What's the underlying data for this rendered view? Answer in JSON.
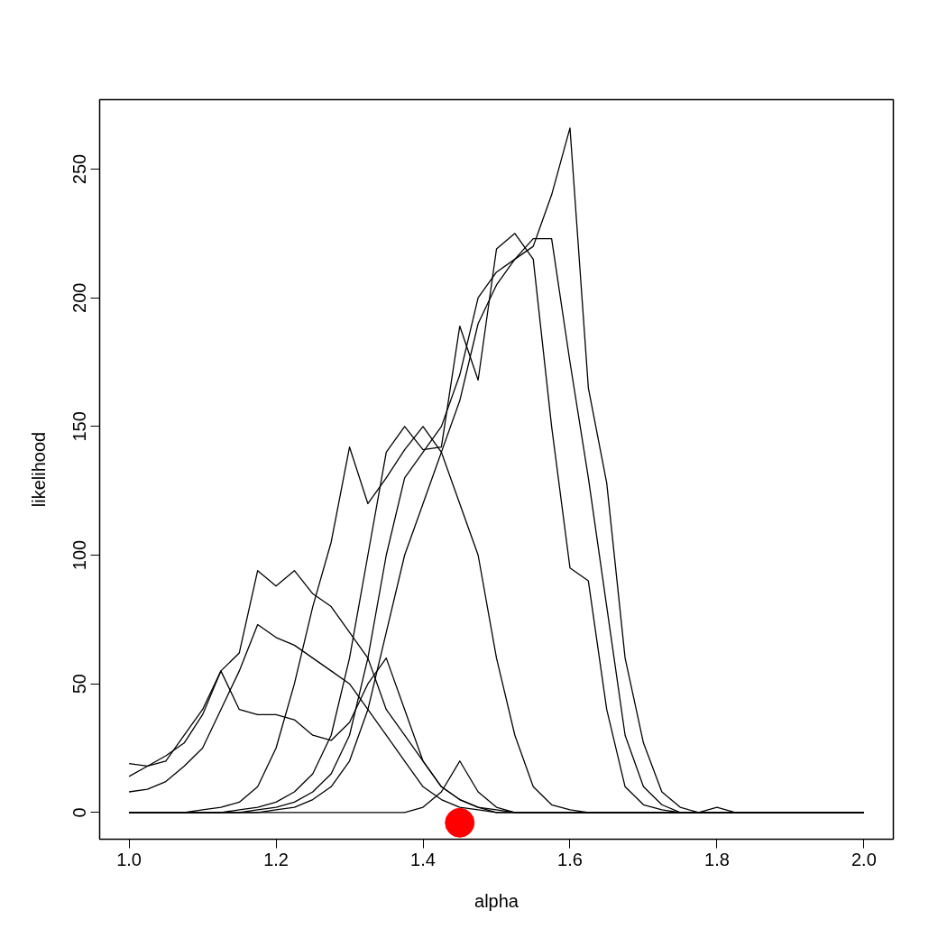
{
  "chart_data": {
    "type": "line",
    "xlabel": "alpha",
    "ylabel": "likelihood",
    "x": [
      1.0,
      1.025,
      1.05,
      1.075,
      1.1,
      1.125,
      1.15,
      1.175,
      1.2,
      1.225,
      1.25,
      1.275,
      1.3,
      1.325,
      1.35,
      1.375,
      1.4,
      1.425,
      1.45,
      1.475,
      1.5,
      1.525,
      1.55,
      1.575,
      1.6,
      1.625,
      1.65,
      1.675,
      1.7,
      1.725,
      1.75,
      1.775,
      1.8,
      1.825,
      1.85,
      1.875,
      1.9,
      1.925,
      1.95,
      1.975,
      2.0
    ],
    "series": [
      {
        "color": "#000000",
        "values": [
          0,
          0,
          0,
          0,
          0,
          0,
          0,
          1,
          2,
          4,
          8,
          15,
          30,
          60,
          100,
          130,
          140,
          150,
          170,
          200,
          210,
          215,
          220,
          240,
          266,
          165,
          128,
          60,
          27,
          8,
          2,
          0,
          0,
          0,
          0,
          0,
          0,
          0,
          0,
          0,
          0
        ]
      },
      {
        "color": "#000000",
        "values": [
          0,
          0,
          0,
          0,
          0,
          0,
          1,
          2,
          4,
          8,
          15,
          30,
          60,
          100,
          140,
          150,
          141,
          142,
          189,
          168,
          219,
          225,
          215,
          150,
          95,
          90,
          40,
          10,
          3,
          1,
          0,
          0,
          0,
          0,
          0,
          0,
          0,
          0,
          0,
          0,
          0
        ]
      },
      {
        "color": "#000000",
        "values": [
          14,
          18,
          22,
          27,
          38,
          55,
          62,
          94,
          88,
          94,
          85,
          80,
          70,
          60,
          40,
          30,
          20,
          10,
          5,
          2,
          1,
          0,
          0,
          0,
          0,
          0,
          0,
          0,
          0,
          0,
          0,
          0,
          0,
          0,
          0,
          0,
          0,
          0,
          0,
          0,
          0
        ]
      },
      {
        "color": "#000000",
        "values": [
          19,
          18,
          20,
          30,
          40,
          55,
          40,
          38,
          38,
          36,
          30,
          28,
          35,
          50,
          60,
          40,
          20,
          10,
          5,
          2,
          0,
          0,
          0,
          0,
          0,
          0,
          0,
          0,
          0,
          0,
          0,
          0,
          0,
          0,
          0,
          0,
          0,
          0,
          0,
          0,
          0
        ]
      },
      {
        "color": "#000000",
        "values": [
          0,
          0,
          0,
          0,
          1,
          2,
          4,
          10,
          25,
          50,
          80,
          105,
          142,
          120,
          130,
          141,
          150,
          140,
          120,
          100,
          60,
          30,
          10,
          3,
          1,
          0,
          0,
          0,
          0,
          0,
          0,
          0,
          0,
          0,
          0,
          0,
          0,
          0,
          0,
          0,
          0
        ]
      },
      {
        "color": "#000000",
        "values": [
          0,
          0,
          0,
          0,
          0,
          0,
          0,
          0,
          1,
          2,
          5,
          10,
          20,
          40,
          70,
          100,
          120,
          140,
          160,
          190,
          205,
          215,
          223,
          223,
          175,
          130,
          80,
          30,
          10,
          3,
          0,
          0,
          2,
          0,
          0,
          0,
          0,
          0,
          0,
          0,
          0
        ]
      },
      {
        "color": "#000000",
        "values": [
          8,
          9,
          12,
          18,
          25,
          40,
          55,
          73,
          68,
          65,
          60,
          55,
          50,
          40,
          30,
          20,
          10,
          5,
          2,
          1,
          0,
          0,
          0,
          0,
          0,
          0,
          0,
          0,
          0,
          0,
          0,
          0,
          0,
          0,
          0,
          0,
          0,
          0,
          0,
          0,
          0
        ]
      },
      {
        "color": "#000000",
        "values": [
          0,
          0,
          0,
          0,
          0,
          0,
          0,
          0,
          0,
          0,
          0,
          0,
          0,
          0,
          0,
          0,
          2,
          8,
          20,
          8,
          2,
          0,
          0,
          0,
          0,
          0,
          0,
          0,
          0,
          0,
          0,
          0,
          0,
          0,
          0,
          0,
          0,
          0,
          0,
          0,
          0
        ]
      },
      {
        "type": "scatter",
        "marker": "circle",
        "color": "#ff0000",
        "x": [
          1.45
        ],
        "values": [
          -4
        ]
      }
    ],
    "xlim": [
      0.96,
      2.04
    ],
    "ylim": [
      -10.4,
      277
    ],
    "xticks": [
      {
        "value": 1.0,
        "label": "1.0"
      },
      {
        "value": 1.2,
        "label": "1.2"
      },
      {
        "value": 1.4,
        "label": "1.4"
      },
      {
        "value": 1.6,
        "label": "1.6"
      },
      {
        "value": 1.8,
        "label": "1.8"
      },
      {
        "value": 2.0,
        "label": "2.0"
      }
    ],
    "yticks": [
      0,
      50,
      100,
      150,
      200,
      250
    ],
    "grid": false
  }
}
